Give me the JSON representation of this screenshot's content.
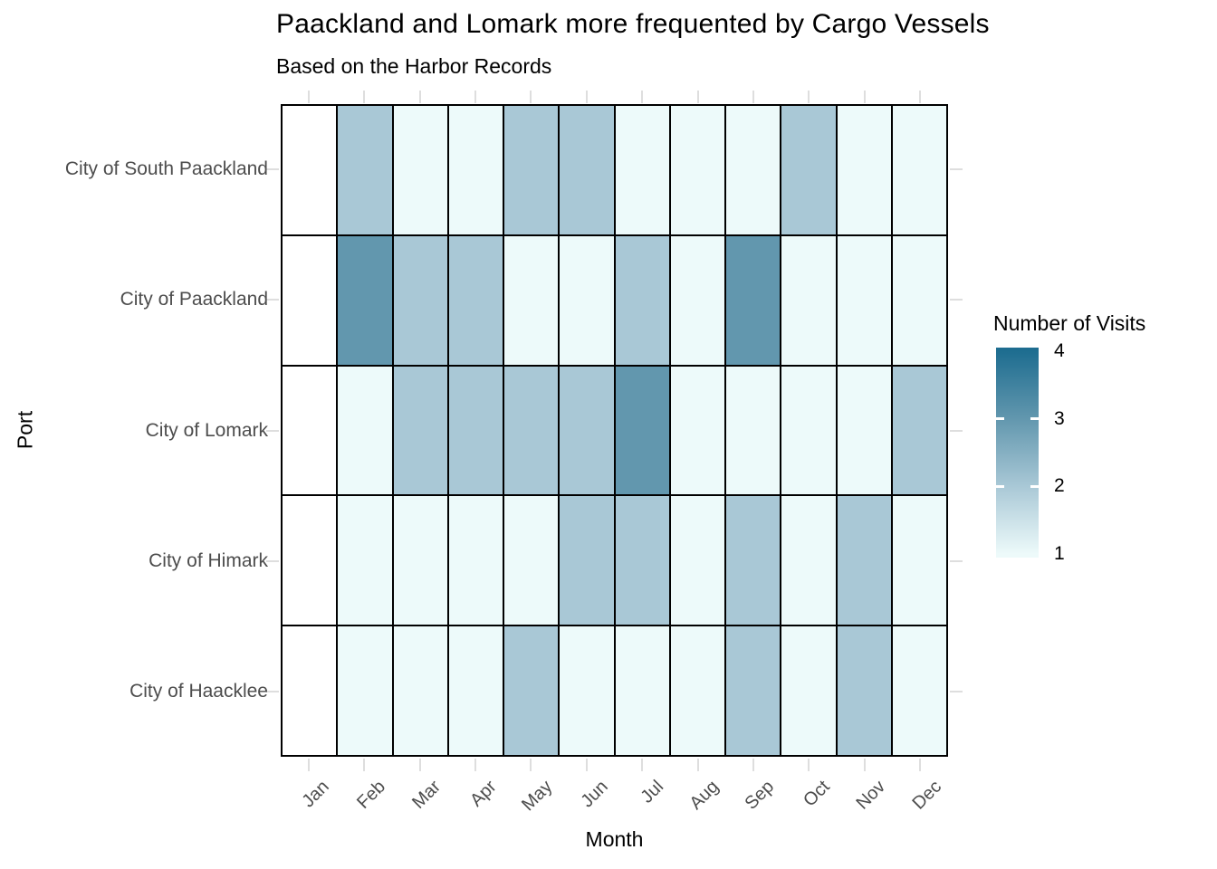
{
  "chart_data": {
    "type": "heatmap",
    "title": "Paackland and Lomark more frequented by Cargo Vessels",
    "subtitle": "Based on the Harbor Records",
    "xlabel": "Month",
    "ylabel": "Port",
    "x": [
      "Jan",
      "Feb",
      "Mar",
      "Apr",
      "May",
      "Jun",
      "Jul",
      "Aug",
      "Sep",
      "Oct",
      "Nov",
      "Dec"
    ],
    "rows": [
      "City of South Paackland",
      "City of Paackland",
      "City of Lomark",
      "City of Himark",
      "City of Haacklee"
    ],
    "values": [
      [
        null,
        2,
        1,
        1,
        2,
        2,
        1,
        1,
        1,
        2,
        1,
        1
      ],
      [
        null,
        3,
        2,
        2,
        1,
        1,
        2,
        1,
        3,
        1,
        1,
        1
      ],
      [
        null,
        1,
        2,
        2,
        2,
        2,
        3,
        1,
        1,
        1,
        1,
        2
      ],
      [
        null,
        1,
        1,
        1,
        1,
        2,
        2,
        1,
        2,
        1,
        2,
        1
      ],
      [
        null,
        1,
        1,
        1,
        2,
        1,
        1,
        1,
        2,
        1,
        2,
        1
      ]
    ],
    "value_domain": [
      1,
      4
    ],
    "legend": {
      "title": "Number of Visits",
      "ticks": [
        "4",
        "3",
        "2",
        "1"
      ]
    },
    "colors": {
      "1": "#edfafa",
      "2": "#a9c8d6",
      "3": "#6297ae",
      "4": "#1e6d90",
      "na": "#ffffff"
    },
    "cell_border_color": "#000000",
    "axis_text_color": "#4d4d4d",
    "tick_color": "#dedede",
    "grid": false,
    "legend_position": "right"
  }
}
